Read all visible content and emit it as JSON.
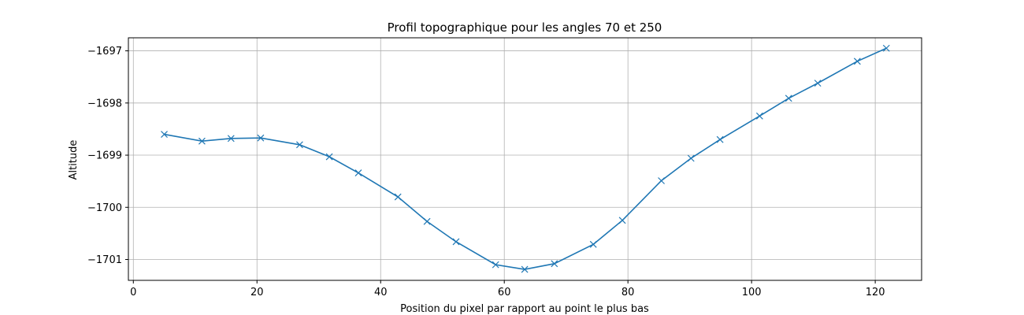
{
  "chart_data": {
    "type": "line",
    "title": "Profil topographique pour les angles 70 et 250",
    "xlabel": "Position du pixel par rapport au point le plus bas",
    "ylabel": "Altitude",
    "xlim": [
      -0.8,
      127.5
    ],
    "ylim": [
      -1701.4,
      -1696.75
    ],
    "xticks": [
      0,
      20,
      40,
      60,
      80,
      100,
      120
    ],
    "yticks": [
      -1701,
      -1700,
      -1699,
      -1698,
      -1697
    ],
    "ytick_labels": [
      "−1701",
      "−1700",
      "−1699",
      "−1698",
      "−1697"
    ],
    "grid": true,
    "marker": "x",
    "color": "#1f77b4",
    "series": [
      {
        "x": [
          5,
          11.1,
          15.8,
          20.6,
          26.9,
          31.7,
          36.4,
          42.8,
          47.5,
          52.2,
          58.6,
          63.3,
          68.1,
          74.4,
          79.1,
          85.4,
          90.2,
          94.9,
          101.3,
          106.0,
          110.7,
          117.1,
          121.8
        ],
        "y": [
          -1698.6,
          -1698.73,
          -1698.68,
          -1698.67,
          -1698.8,
          -1699.03,
          -1699.34,
          -1699.8,
          -1700.27,
          -1700.66,
          -1701.1,
          -1701.19,
          -1701.08,
          -1700.71,
          -1700.25,
          -1699.49,
          -1699.06,
          -1698.7,
          -1698.25,
          -1697.91,
          -1697.62,
          -1697.2,
          -1696.95
        ]
      }
    ]
  }
}
